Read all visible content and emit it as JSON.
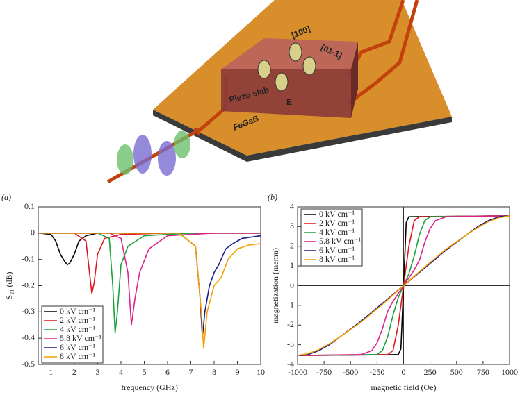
{
  "illustration": {
    "labels": [
      "[100]",
      "[01-1]",
      "Piezo slab",
      "E",
      "FeGaB"
    ]
  },
  "chart_data": [
    {
      "type": "line",
      "panel": "(a)",
      "x_label": "frequency (GHz)",
      "y_label": "S₂₁ (dB)",
      "xlim": [
        0.45,
        10
      ],
      "ylim": [
        -0.5,
        0.1
      ],
      "xticks": [
        1,
        2,
        3,
        4,
        5,
        6,
        7,
        8,
        9,
        10
      ],
      "yticks": [
        0.1,
        0,
        -0.1,
        -0.2,
        -0.3,
        -0.4,
        -0.5
      ],
      "legend": "lower left",
      "series": [
        {
          "name": "0 kV cm⁻¹",
          "color": "#000000",
          "x": [
            0.5,
            1.0,
            1.2,
            1.4,
            1.6,
            1.7,
            1.8,
            2.0,
            2.2,
            2.5,
            3,
            4,
            6,
            8,
            10
          ],
          "values": [
            0,
            -0.005,
            -0.03,
            -0.08,
            -0.11,
            -0.12,
            -0.115,
            -0.08,
            -0.03,
            -0.01,
            0,
            0,
            0,
            0,
            0
          ]
        },
        {
          "name": "2 kV cm⁻¹",
          "color": "#e0161b",
          "x": [
            0.5,
            2,
            2.5,
            2.65,
            2.75,
            2.85,
            3.0,
            3.3,
            4,
            6,
            10
          ],
          "values": [
            0,
            0,
            -0.03,
            -0.15,
            -0.23,
            -0.19,
            -0.08,
            -0.02,
            -0.005,
            0,
            0
          ]
        },
        {
          "name": "4 kV cm⁻¹",
          "color": "#1aa33a",
          "x": [
            0.5,
            3,
            3.5,
            3.65,
            3.75,
            3.85,
            4.0,
            4.3,
            5,
            7,
            10
          ],
          "values": [
            0,
            0,
            -0.02,
            -0.2,
            -0.38,
            -0.3,
            -0.12,
            -0.05,
            -0.01,
            0,
            0
          ]
        },
        {
          "name": "5.8 kV cm⁻¹",
          "color": "#e0218a",
          "x": [
            0.5,
            3.5,
            4.0,
            4.3,
            4.45,
            4.6,
            4.8,
            5.2,
            6,
            8,
            10
          ],
          "values": [
            0,
            0,
            -0.02,
            -0.15,
            -0.35,
            -0.25,
            -0.15,
            -0.06,
            -0.01,
            0,
            0
          ]
        },
        {
          "name": "6 kV cm⁻¹",
          "color": "#1a1a8c",
          "x": [
            0.5,
            6.5,
            7.2,
            7.4,
            7.5,
            7.6,
            7.8,
            8.0,
            8.2,
            8.5,
            8.8,
            9.2,
            10
          ],
          "values": [
            0,
            0,
            -0.05,
            -0.25,
            -0.4,
            -0.3,
            -0.2,
            -0.15,
            -0.12,
            -0.06,
            -0.04,
            -0.02,
            -0.01
          ]
        },
        {
          "name": "8 kV cm⁻¹",
          "color": "#f5a000",
          "x": [
            0.5,
            6.5,
            7.2,
            7.45,
            7.55,
            7.7,
            8.0,
            8.3,
            8.6,
            9.0,
            9.5,
            10
          ],
          "values": [
            0,
            0,
            -0.05,
            -0.3,
            -0.44,
            -0.3,
            -0.2,
            -0.17,
            -0.1,
            -0.06,
            -0.045,
            -0.04
          ]
        }
      ]
    },
    {
      "type": "line",
      "panel": "(b)",
      "x_label": "magnetic field (Oe)",
      "y_label": "magnetization (memu)",
      "xlim": [
        -1000,
        1000
      ],
      "ylim": [
        -4,
        4
      ],
      "xticks": [
        -1000,
        -750,
        -500,
        -250,
        0,
        250,
        500,
        750,
        1000
      ],
      "yticks": [
        4,
        3,
        2,
        1,
        0,
        -1,
        -2,
        -3,
        -4
      ],
      "legend": "upper left",
      "series": [
        {
          "name": "0 kV cm⁻¹",
          "color": "#000000",
          "x": [
            -1000,
            -50,
            -25,
            0,
            25,
            50,
            1000
          ],
          "values": [
            -3.55,
            -3.5,
            -3.2,
            0,
            3.2,
            3.5,
            3.55
          ]
        },
        {
          "name": "2 kV cm⁻¹",
          "color": "#e0161b",
          "x": [
            -1000,
            -150,
            -100,
            -50,
            0,
            50,
            100,
            150,
            1000
          ],
          "values": [
            -3.55,
            -3.5,
            -3.3,
            -2.0,
            0,
            2.0,
            3.3,
            3.5,
            3.55
          ]
        },
        {
          "name": "4 kV cm⁻¹",
          "color": "#1aa33a",
          "x": [
            -1000,
            -250,
            -200,
            -150,
            -100,
            -50,
            0,
            50,
            100,
            150,
            200,
            250,
            1000
          ],
          "values": [
            -3.55,
            -3.5,
            -3.3,
            -2.6,
            -1.5,
            -0.6,
            0,
            0.6,
            1.5,
            2.6,
            3.3,
            3.5,
            3.55
          ]
        },
        {
          "name": "5.8 kV cm⁻¹",
          "color": "#e0218a",
          "x": [
            -1000,
            -400,
            -300,
            -250,
            -200,
            -150,
            -100,
            0,
            100,
            150,
            200,
            250,
            300,
            400,
            1000
          ],
          "values": [
            -3.55,
            -3.5,
            -3.3,
            -2.9,
            -2.2,
            -1.3,
            -0.8,
            0,
            0.8,
            1.3,
            2.2,
            2.9,
            3.3,
            3.5,
            3.55
          ]
        },
        {
          "name": "6 kV cm⁻¹",
          "color": "#1a1a8c",
          "x": [
            -1000,
            -900,
            -800,
            -700,
            -600,
            -400,
            -200,
            0,
            200,
            400,
            600,
            700,
            800,
            900,
            1000
          ],
          "values": [
            -3.55,
            -3.5,
            -3.3,
            -3.0,
            -2.6,
            -1.8,
            -0.9,
            0,
            0.9,
            1.8,
            2.6,
            3.0,
            3.3,
            3.5,
            3.55
          ]
        },
        {
          "name": "8 kV cm⁻¹",
          "color": "#f5a000",
          "x": [
            -1000,
            -900,
            -800,
            -700,
            -600,
            -400,
            -200,
            0,
            200,
            400,
            600,
            700,
            800,
            900,
            1000
          ],
          "values": [
            -3.55,
            -3.45,
            -3.25,
            -2.95,
            -2.6,
            -1.85,
            -0.95,
            0,
            0.95,
            1.85,
            2.6,
            2.95,
            3.25,
            3.45,
            3.55
          ]
        }
      ]
    }
  ]
}
